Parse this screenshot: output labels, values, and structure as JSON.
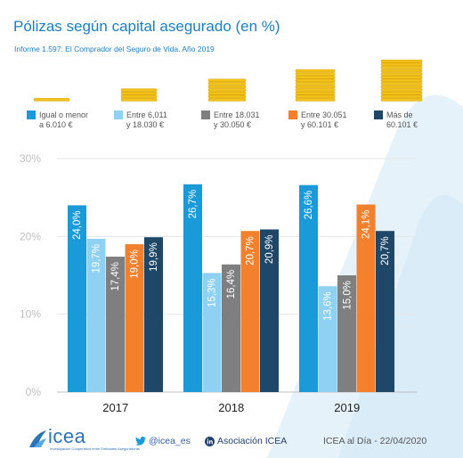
{
  "header": {
    "title": "Pólizas según capital asegurado (en %)",
    "subtitle": "Informe 1.597: El Comprador del Seguro de Vida. Año 2019"
  },
  "chart_data": {
    "type": "bar",
    "categories": [
      "2017",
      "2018",
      "2019"
    ],
    "series": [
      {
        "name": "Igual o menor a 6.010 €",
        "legend_lines": [
          "Igual o menor",
          "a 6.010 €"
        ],
        "color": "#1b9ad9",
        "values": [
          24.0,
          26.7,
          26.6
        ],
        "labels": [
          "24,0%",
          "26,7%",
          "26,6%"
        ],
        "coins": 1
      },
      {
        "name": "Entre 6,011 y 18.030 €",
        "legend_lines": [
          "Entre 6,011",
          "y 18.030 €"
        ],
        "color": "#8ed1f2",
        "values": [
          19.7,
          15.3,
          13.6
        ],
        "labels": [
          "19,7%",
          "15,3%",
          "13,6%"
        ],
        "coins": 4
      },
      {
        "name": "Entre 18.031 y 30.050 €",
        "legend_lines": [
          "Entre 18.031",
          "y 30.050 €"
        ],
        "color": "#7f7f7f",
        "values": [
          17.4,
          16.4,
          15.0
        ],
        "labels": [
          "17,4%",
          "16,4%",
          "15,0%"
        ],
        "coins": 7
      },
      {
        "name": "Entre 30.051 y 60.101 €",
        "legend_lines": [
          "Entre 30.051",
          "y 60.101 €"
        ],
        "color": "#f2802c",
        "values": [
          19.0,
          20.7,
          24.1
        ],
        "labels": [
          "19,0%",
          "20,7%",
          "24,1%"
        ],
        "coins": 10
      },
      {
        "name": "Más de 60.101 €",
        "legend_lines": [
          "Más de",
          "60.101 €"
        ],
        "color": "#1f4868",
        "values": [
          19.9,
          20.9,
          20.7
        ],
        "labels": [
          "19,9%",
          "20,9%",
          "20,7%"
        ],
        "coins": 13
      }
    ],
    "y_ticks": [
      "0%",
      "10%",
      "20%",
      "30%"
    ],
    "ylim": [
      0,
      30
    ],
    "grid": true,
    "legend_position": "top",
    "xlabel": "",
    "ylabel": ""
  },
  "footer": {
    "logo_text": "icea",
    "logo_subtext": "Investigación Cooperativa entre Entidades Aseguradoras",
    "twitter": "@icea_es",
    "linkedin": "Asociación ICEA",
    "credit": "ICEA al Día - 22/04/2020"
  },
  "colors": {
    "title": "#1a7fc4",
    "coin_gold": "#f2c21a",
    "coin_shade": "#d9a300",
    "watermark": "#e6f2fa"
  },
  "icons": [
    "twitter-icon",
    "linkedin-icon",
    "icea-logo-icon"
  ]
}
